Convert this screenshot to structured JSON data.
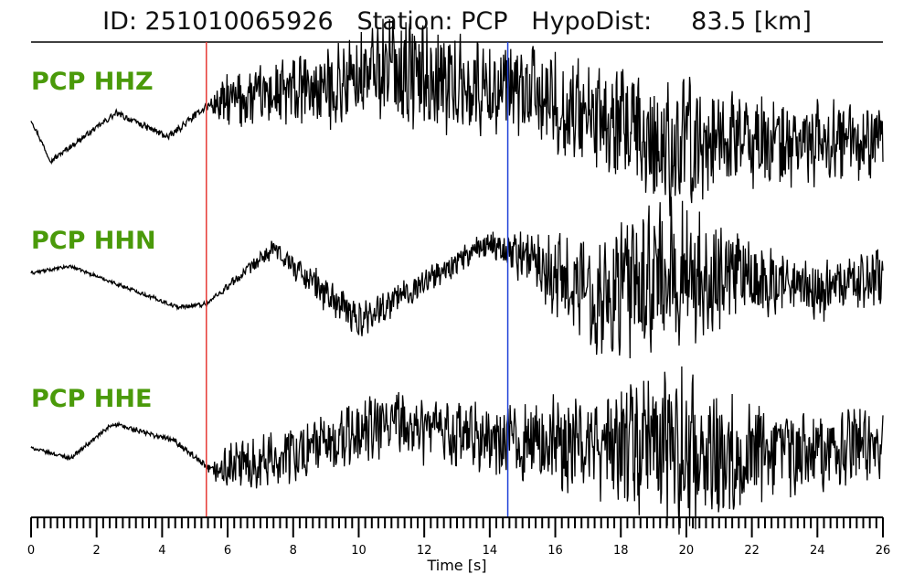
{
  "header": {
    "title": "ID: 251010065926   Station: PCP   HypoDist:     83.5 [km]"
  },
  "colors": {
    "label": "#4a9a0a",
    "trace": "#000000",
    "p_pick": "#e53935",
    "s_pick": "#1e40d8"
  },
  "chart_data": {
    "type": "line",
    "title": "ID: 251010065926   Station: PCP   HypoDist:     83.5 [km]",
    "xlabel": "Time [s]",
    "ylabel": "",
    "xlim": [
      0,
      26
    ],
    "x_ticks": [
      "0",
      "2",
      "4",
      "6",
      "8",
      "10",
      "12",
      "14",
      "16",
      "18",
      "20",
      "22",
      "24",
      "26"
    ],
    "minor_tick_step": 0.2,
    "grid": false,
    "picks": [
      {
        "phase": "P",
        "time": 5.35,
        "color": "#e53935"
      },
      {
        "phase": "S",
        "time": 14.55,
        "color": "#1e40d8"
      }
    ],
    "series": [
      {
        "name": "PCP HHZ",
        "envelope": [
          [
            0,
            0.03
          ],
          [
            5.35,
            0.05
          ],
          [
            6,
            0.35
          ],
          [
            10,
            0.55
          ],
          [
            11.5,
            0.7
          ],
          [
            14.5,
            0.6
          ],
          [
            17.5,
            0.75
          ],
          [
            19.5,
            0.9
          ],
          [
            22,
            0.6
          ],
          [
            26,
            0.45
          ]
        ],
        "trend": [
          [
            0,
            0.05
          ],
          [
            0.6,
            -0.55
          ],
          [
            2.6,
            0.15
          ],
          [
            4.2,
            -0.2
          ],
          [
            5.35,
            0.25
          ],
          [
            7,
            0.4
          ],
          [
            9,
            0.5
          ],
          [
            11,
            0.85
          ],
          [
            13,
            0.55
          ],
          [
            15,
            0.45
          ],
          [
            17,
            0.1
          ],
          [
            19,
            -0.35
          ],
          [
            21,
            -0.2
          ],
          [
            23,
            -0.3
          ],
          [
            26,
            -0.25
          ]
        ]
      },
      {
        "name": "PCP HHN",
        "envelope": [
          [
            0,
            0.02
          ],
          [
            5.35,
            0.03
          ],
          [
            7,
            0.1
          ],
          [
            9,
            0.25
          ],
          [
            11,
            0.2
          ],
          [
            14,
            0.15
          ],
          [
            15.5,
            0.45
          ],
          [
            17.5,
            0.8
          ],
          [
            19,
            1.0
          ],
          [
            20.5,
            0.9
          ],
          [
            22,
            0.45
          ],
          [
            26,
            0.35
          ]
        ],
        "trend": [
          [
            0,
            0.15
          ],
          [
            1.2,
            0.25
          ],
          [
            4.5,
            -0.35
          ],
          [
            5.35,
            -0.3
          ],
          [
            7.4,
            0.5
          ],
          [
            10,
            -0.55
          ],
          [
            14,
            0.6
          ],
          [
            15.5,
            0.3
          ],
          [
            17.5,
            -0.2
          ],
          [
            20,
            0.15
          ],
          [
            22,
            0.05
          ],
          [
            24,
            -0.1
          ],
          [
            26,
            0.1
          ]
        ]
      },
      {
        "name": "PCP HHE",
        "envelope": [
          [
            0,
            0.02
          ],
          [
            5.35,
            0.05
          ],
          [
            6,
            0.3
          ],
          [
            10,
            0.45
          ],
          [
            14,
            0.45
          ],
          [
            16,
            0.6
          ],
          [
            18,
            0.8
          ],
          [
            19.5,
            1.05
          ],
          [
            21,
            0.8
          ],
          [
            23,
            0.55
          ],
          [
            26,
            0.45
          ]
        ],
        "trend": [
          [
            0,
            0.0
          ],
          [
            1.2,
            -0.15
          ],
          [
            2.5,
            0.35
          ],
          [
            4.4,
            0.1
          ],
          [
            5.5,
            -0.35
          ],
          [
            7,
            -0.2
          ],
          [
            9,
            0.05
          ],
          [
            11,
            0.35
          ],
          [
            14,
            0.1
          ],
          [
            17,
            0.05
          ],
          [
            19,
            0.0
          ],
          [
            22,
            -0.1
          ],
          [
            26,
            0.05
          ]
        ]
      }
    ]
  }
}
